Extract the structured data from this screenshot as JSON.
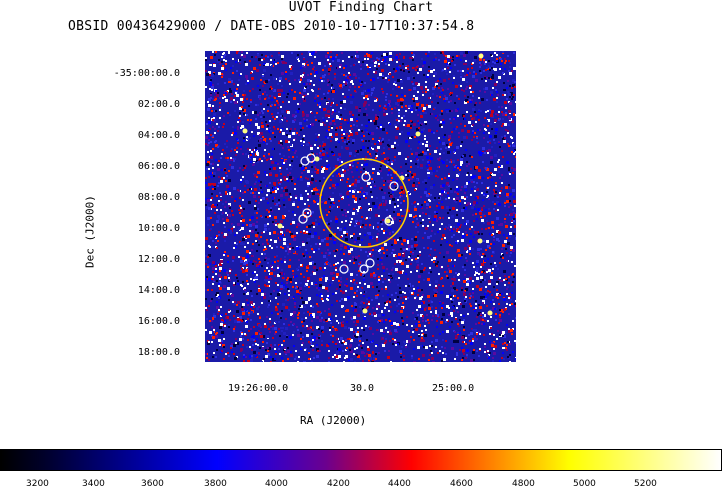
{
  "title": "UVOT Finding Chart",
  "subtitle": "OBSID 00436429000 / DATE-OBS 2010-10-17T10:37:54.8",
  "y_axis": {
    "label": "Dec (J2000)",
    "ticks": [
      "-35:00:00.0",
      "02:00.0",
      "04:00.0",
      "06:00.0",
      "08:00.0",
      "10:00.0",
      "12:00.0",
      "14:00.0",
      "16:00.0",
      "18:00.0"
    ]
  },
  "x_axis": {
    "label": "RA (J2000)",
    "ticks": [
      "19:26:00.0",
      "30.0",
      "25:00.0"
    ]
  },
  "colorbar": {
    "ticks": [
      "3200",
      "3400",
      "3600",
      "3800",
      "4000",
      "4200",
      "4400",
      "4600",
      "4800",
      "5000",
      "5200"
    ],
    "colors": [
      "#000000",
      "#0000ff",
      "#ff0000",
      "#ffff00",
      "#ffffff"
    ]
  },
  "colors": {
    "field_background": "#1a1aa8",
    "error_circle": "#ffd000",
    "source_marker": "#ffffff"
  }
}
